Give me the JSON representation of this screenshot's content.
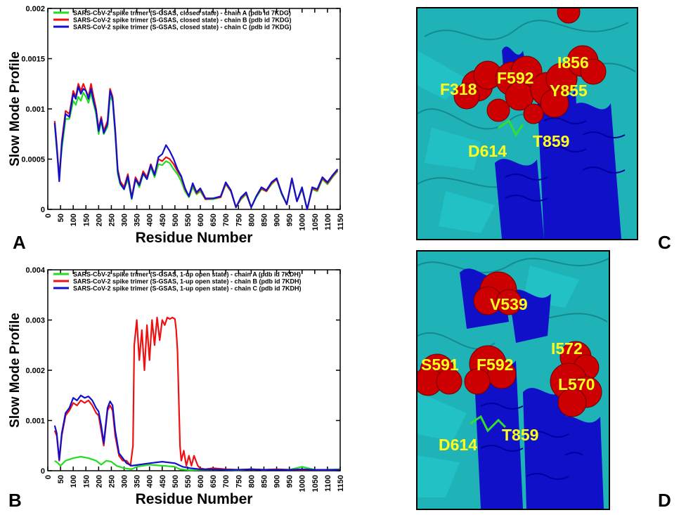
{
  "panels": {
    "A": {
      "letter": "A",
      "chart_data": {
        "type": "line",
        "ylabel": "Slow Mode Profile",
        "xlabel": "Residue Number",
        "xlim": [
          0,
          1150
        ],
        "ylim": [
          0,
          0.002
        ],
        "yticks": [
          "0",
          "0.0005",
          "0.001",
          "0.0015",
          "0.002"
        ],
        "xticks": [
          "0",
          "50",
          "100",
          "150",
          "200",
          "250",
          "300",
          "350",
          "400",
          "450",
          "500",
          "550",
          "600",
          "650",
          "700",
          "750",
          "800",
          "850",
          "900",
          "950",
          "1000",
          "1050",
          "1100",
          "1150"
        ],
        "legend_position": "top-left",
        "series": [
          {
            "name": "SARS-CoV-2 spike trimer (S-GSAS, closed state) - chain A (pdb id 7KDG)",
            "color": "#22dd22",
            "x": [
              27,
              35,
              45,
              55,
              70,
              85,
              100,
              110,
              120,
              130,
              140,
              150,
              160,
              170,
              180,
              190,
              200,
              210,
              220,
              235,
              245,
              255,
              265,
              275,
              285,
              300,
              315,
              330,
              345,
              360,
              375,
              390,
              405,
              420,
              435,
              450,
              465,
              480,
              495,
              510,
              525,
              540,
              555,
              570,
              585,
              600,
              620,
              650,
              680,
              700,
              720,
              740,
              760,
              780,
              800,
              820,
              840,
              860,
              880,
              900,
              920,
              940,
              960,
              980,
              1000,
              1020,
              1040,
              1060,
              1080,
              1100,
              1120,
              1140
            ],
            "y": [
              0.00085,
              0.0006,
              0.00035,
              0.0006,
              0.0009,
              0.0009,
              0.00108,
              0.00104,
              0.00112,
              0.00108,
              0.00116,
              0.00112,
              0.00106,
              0.00116,
              0.00105,
              0.00095,
              0.00075,
              0.00088,
              0.00075,
              0.00082,
              0.00112,
              0.00108,
              0.00075,
              0.00035,
              0.00025,
              0.0002,
              0.0003,
              0.0001,
              0.0003,
              0.00022,
              0.00035,
              0.0003,
              0.00042,
              0.00032,
              0.00045,
              0.00044,
              0.00048,
              0.00046,
              0.0004,
              0.00035,
              0.00028,
              0.00018,
              0.00012,
              0.00022,
              0.00015,
              0.00018,
              0.0001,
              0.0001,
              0.00012,
              0.00025,
              0.00018,
              2e-05,
              0.0001,
              0.00015,
              2e-05,
              0.00012,
              0.0002,
              0.00018,
              0.00025,
              0.0003,
              0.00015,
              5e-05,
              0.0003,
              8e-05,
              0.0002,
              0.0,
              0.0002,
              0.00018,
              0.0003,
              0.00025,
              0.00032,
              0.00038
            ]
          },
          {
            "name": "SARS-CoV-2 spike trimer (S-GSAS, closed state) - chain B (pdb id 7KDG)",
            "color": "#ee1111",
            "x": [
              27,
              35,
              45,
              55,
              70,
              85,
              100,
              110,
              120,
              130,
              140,
              150,
              160,
              170,
              180,
              190,
              200,
              210,
              220,
              235,
              245,
              255,
              265,
              275,
              285,
              300,
              315,
              330,
              345,
              360,
              375,
              390,
              405,
              420,
              435,
              450,
              465,
              480,
              495,
              510,
              525,
              540,
              555,
              570,
              585,
              600,
              620,
              650,
              680,
              700,
              720,
              740,
              760,
              780,
              800,
              820,
              840,
              860,
              880,
              900,
              920,
              940,
              960,
              980,
              1000,
              1020,
              1040,
              1060,
              1080,
              1100,
              1120,
              1140
            ],
            "y": [
              0.00088,
              0.00065,
              0.0003,
              0.00068,
              0.00098,
              0.00095,
              0.00118,
              0.00112,
              0.00125,
              0.00118,
              0.00125,
              0.00118,
              0.00112,
              0.00125,
              0.00112,
              0.001,
              0.0008,
              0.00092,
              0.00078,
              0.00088,
              0.0012,
              0.00112,
              0.0008,
              0.0004,
              0.00028,
              0.00022,
              0.00035,
              0.00012,
              0.00032,
              0.00025,
              0.00038,
              0.00032,
              0.00045,
              0.00035,
              0.0005,
              0.00048,
              0.00052,
              0.0005,
              0.00045,
              0.00038,
              0.00032,
              0.0002,
              0.00013,
              0.00025,
              0.00016,
              0.0002,
              0.0001,
              0.00011,
              0.00012,
              0.00026,
              0.00018,
              2e-05,
              0.00011,
              0.00016,
              2e-05,
              0.00013,
              0.00021,
              0.00018,
              0.00026,
              0.0003,
              0.00016,
              5e-05,
              0.0003,
              8e-05,
              0.00021,
              0.0,
              0.00021,
              0.00019,
              0.00031,
              0.00026,
              0.00033,
              0.00039
            ]
          },
          {
            "name": "SARS-CoV-2 spike trimer (S-GSAS, closed state) - chain C (pdb id 7KDG)",
            "color": "#1111cc",
            "x": [
              27,
              35,
              45,
              55,
              70,
              85,
              100,
              110,
              120,
              130,
              140,
              150,
              160,
              170,
              180,
              190,
              200,
              210,
              220,
              235,
              245,
              255,
              265,
              275,
              285,
              300,
              315,
              330,
              345,
              360,
              375,
              390,
              405,
              420,
              435,
              450,
              465,
              480,
              495,
              510,
              525,
              540,
              555,
              570,
              585,
              600,
              620,
              650,
              680,
              700,
              720,
              740,
              760,
              780,
              800,
              820,
              840,
              860,
              880,
              900,
              920,
              940,
              960,
              980,
              1000,
              1020,
              1040,
              1060,
              1080,
              1100,
              1120,
              1140
            ],
            "y": [
              0.00086,
              0.00062,
              0.00028,
              0.00065,
              0.00095,
              0.00092,
              0.00115,
              0.0011,
              0.00122,
              0.00115,
              0.0012,
              0.00118,
              0.0011,
              0.0012,
              0.00108,
              0.00098,
              0.00078,
              0.0009,
              0.00076,
              0.00085,
              0.00118,
              0.0011,
              0.00078,
              0.00038,
              0.00026,
              0.0002,
              0.00033,
              0.00011,
              0.0003,
              0.00024,
              0.00036,
              0.0003,
              0.00044,
              0.00034,
              0.00052,
              0.00055,
              0.00064,
              0.00058,
              0.0005,
              0.0004,
              0.00033,
              0.00021,
              0.00013,
              0.00026,
              0.00017,
              0.00021,
              0.00011,
              0.00011,
              0.00013,
              0.00027,
              0.00019,
              2e-05,
              0.00012,
              0.00017,
              2e-05,
              0.00013,
              0.00022,
              0.00019,
              0.00027,
              0.00031,
              0.00016,
              5e-05,
              0.00031,
              8e-05,
              0.00022,
              0.0,
              0.00022,
              0.0002,
              0.00032,
              0.00027,
              0.00034,
              0.0004
            ]
          }
        ]
      }
    },
    "B": {
      "letter": "B",
      "chart_data": {
        "type": "line",
        "ylabel": "Slow Mode Profile",
        "xlabel": "Residue Number",
        "xlim": [
          0,
          1150
        ],
        "ylim": [
          0,
          0.004
        ],
        "yticks": [
          "0",
          "0.001",
          "0.002",
          "0.003",
          "0.004"
        ],
        "xticks": [
          "0",
          "50",
          "100",
          "150",
          "200",
          "250",
          "300",
          "350",
          "400",
          "450",
          "500",
          "550",
          "600",
          "650",
          "700",
          "750",
          "800",
          "850",
          "900",
          "950",
          "1000",
          "1050",
          "1100",
          "1150"
        ],
        "legend_position": "top-left",
        "series": [
          {
            "name": "SARS-CoV-2 spike trimer (S-GSAS, 1-up open state) - chain A (pdb id 7KDH)",
            "color": "#22dd22",
            "x": [
              27,
              40,
              50,
              70,
              100,
              130,
              160,
              190,
              210,
              230,
              250,
              270,
              300,
              330,
              350,
              400,
              450,
              500,
              520,
              540,
              560,
              600,
              650,
              700,
              750,
              800,
              850,
              900,
              950,
              1000,
              1050,
              1100,
              1147
            ],
            "y": [
              0.0002,
              0.00015,
              0.0001,
              0.0002,
              0.00025,
              0.00028,
              0.00025,
              0.0002,
              0.00012,
              0.0002,
              0.00018,
              0.0001,
              5e-05,
              3e-05,
              8e-05,
              0.00012,
              0.0001,
              8e-05,
              3e-05,
              2e-05,
              1e-05,
              2e-05,
              3e-05,
              2e-05,
              1e-05,
              3e-05,
              2e-05,
              3e-05,
              2e-05,
              8e-05,
              2e-05,
              2e-05,
              3e-05
            ]
          },
          {
            "name": "SARS-CoV-2 spike trimer (S-GSAS, 1-up open state) - chain B (pdb id 7KDH)",
            "color": "#ee1111",
            "x": [
              27,
              35,
              45,
              55,
              70,
              85,
              100,
              115,
              130,
              145,
              160,
              175,
              190,
              200,
              210,
              220,
              235,
              245,
              255,
              265,
              280,
              295,
              310,
              325,
              335,
              340,
              350,
              360,
              370,
              380,
              390,
              400,
              410,
              420,
              430,
              440,
              450,
              460,
              470,
              480,
              490,
              500,
              505,
              510,
              520,
              525,
              535,
              545,
              555,
              565,
              575,
              590,
              600,
              620,
              650,
              700,
              750,
              800,
              850,
              900,
              950,
              1000,
              1050,
              1100,
              1147
            ],
            "y": [
              0.0008,
              0.0007,
              0.0002,
              0.0007,
              0.0011,
              0.0012,
              0.00135,
              0.0013,
              0.0014,
              0.00135,
              0.0014,
              0.0013,
              0.00115,
              0.0011,
              0.0008,
              0.0005,
              0.0012,
              0.0013,
              0.0012,
              0.0007,
              0.0003,
              0.0002,
              0.0002,
              0.0001,
              0.0005,
              0.0025,
              0.003,
              0.0022,
              0.0028,
              0.002,
              0.0029,
              0.0022,
              0.003,
              0.0025,
              0.00305,
              0.0026,
              0.003,
              0.0029,
              0.00305,
              0.00302,
              0.00305,
              0.00302,
              0.0028,
              0.0024,
              0.0005,
              0.0002,
              0.0004,
              0.0001,
              0.0003,
              0.0001,
              0.0003,
              0.0001,
              5e-05,
              3e-05,
              5e-05,
              3e-05,
              2e-05,
              3e-05,
              2e-05,
              3e-05,
              2e-05,
              2e-05,
              2e-05,
              2e-05,
              2e-05
            ]
          },
          {
            "name": "SARS-CoV-2 spike trimer (S-GSAS, 1-up open state) - chain C (pdb id 7KDH)",
            "color": "#1111cc",
            "x": [
              27,
              35,
              45,
              55,
              70,
              85,
              100,
              115,
              130,
              145,
              160,
              175,
              190,
              200,
              210,
              220,
              235,
              245,
              255,
              265,
              280,
              295,
              310,
              330,
              360,
              400,
              450,
              500,
              530,
              560,
              600,
              650,
              700,
              750,
              800,
              850,
              900,
              950,
              1000,
              1050,
              1100,
              1147
            ],
            "y": [
              0.0009,
              0.00075,
              0.00022,
              0.00075,
              0.00115,
              0.00125,
              0.00145,
              0.0014,
              0.0015,
              0.00145,
              0.00148,
              0.0014,
              0.00125,
              0.00118,
              0.0009,
              0.00055,
              0.00125,
              0.00138,
              0.0013,
              0.0008,
              0.00035,
              0.00025,
              0.00015,
              0.0001,
              0.00012,
              0.00015,
              0.00018,
              0.00015,
              8e-05,
              5e-05,
              3e-05,
              3e-05,
              2e-05,
              2e-05,
              3e-05,
              2e-05,
              2e-05,
              2e-05,
              3e-05,
              2e-05,
              2e-05,
              2e-05
            ]
          }
        ]
      }
    },
    "C": {
      "letter": "C",
      "residue_labels": [
        {
          "text": "F318"
        },
        {
          "text": "F592"
        },
        {
          "text": "I856"
        },
        {
          "text": "Y855"
        },
        {
          "text": "D614"
        },
        {
          "text": "T859"
        }
      ]
    },
    "D": {
      "letter": "D",
      "residue_labels": [
        {
          "text": "V539"
        },
        {
          "text": "S591"
        },
        {
          "text": "F592"
        },
        {
          "text": "I572"
        },
        {
          "text": "L570"
        },
        {
          "text": "D614"
        },
        {
          "text": "T859"
        }
      ]
    },
    "colors": {
      "sphere": "#cc0000",
      "ribbon_cyan": "#1fb3b8",
      "ribbon_blue": "#1010c8",
      "label_yellow": "#ffff1a"
    }
  }
}
